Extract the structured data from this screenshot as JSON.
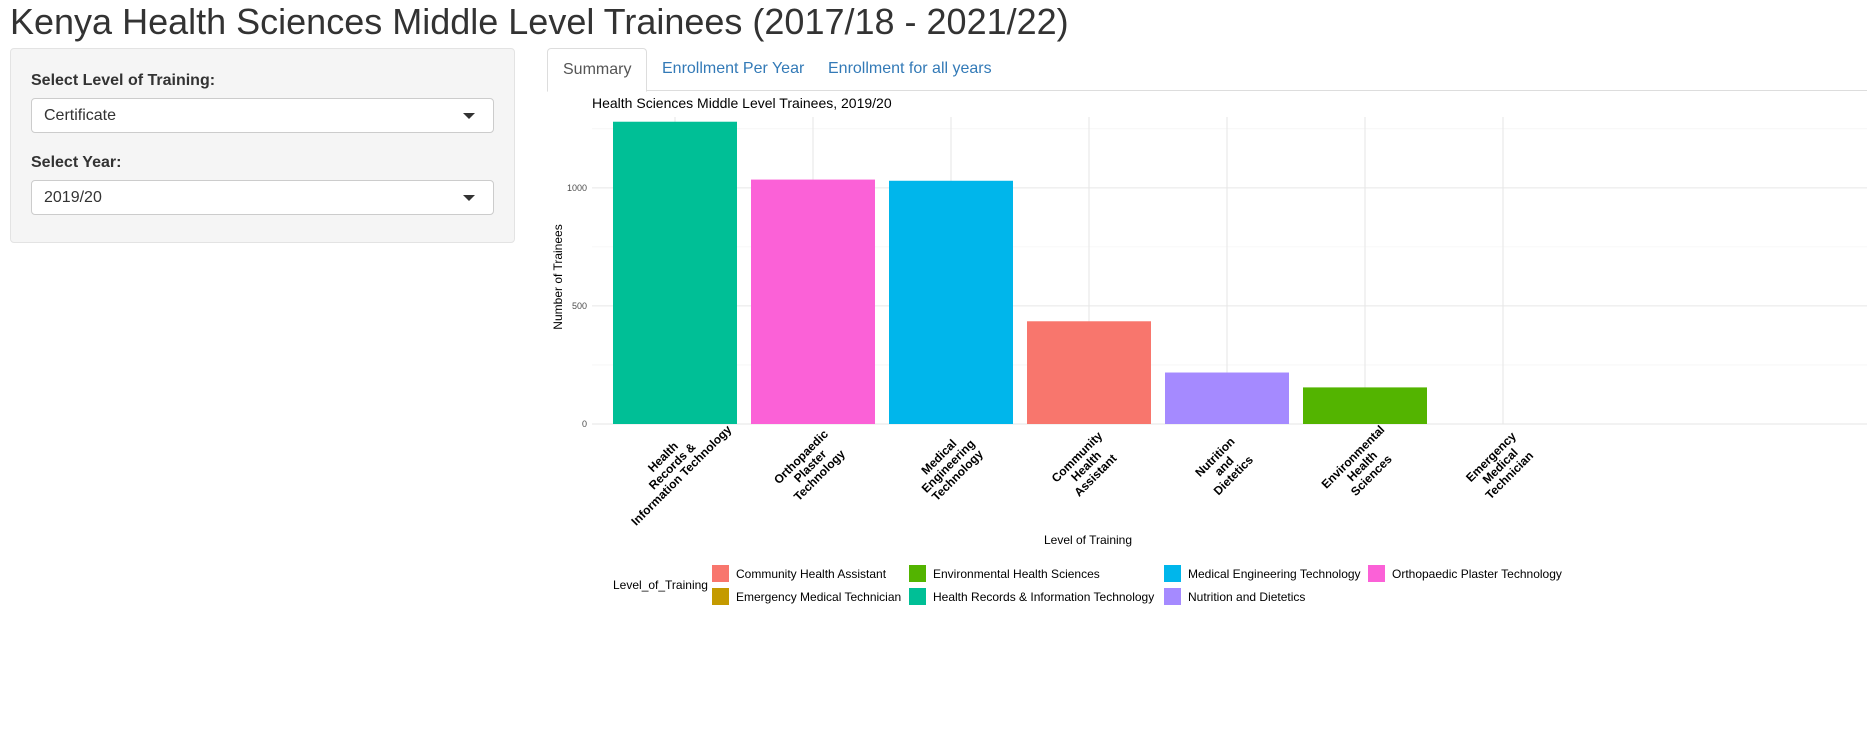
{
  "header": {
    "title": "Kenya Health Sciences Middle Level Trainees (2017/18 - 2021/22)"
  },
  "sidebar": {
    "level_label": "Select Level of Training:",
    "level_value": "Certificate",
    "year_label": "Select Year:",
    "year_value": "2019/20"
  },
  "tabs": [
    {
      "label": "Summary",
      "active": true
    },
    {
      "label": "Enrollment Per Year",
      "active": false
    },
    {
      "label": "Enrollment for all years",
      "active": false
    }
  ],
  "chart_data": {
    "type": "bar",
    "title": "Health Sciences Middle Level Trainees,  2019/20",
    "xlabel": "Level of Training",
    "ylabel": "Number of Trainees",
    "ylim": [
      0,
      1300
    ],
    "yticks": [
      0,
      500,
      1000
    ],
    "grid": true,
    "categories": [
      "Health Records & Information Technology",
      "Orthopaedic Plaster Technology",
      "Medical Engineering Technology",
      "Community Health Assistant",
      "Nutrition and Dietetics",
      "Environmental Health Sciences",
      "Emergency Medical Technician"
    ],
    "values": [
      1280,
      1035,
      1030,
      435,
      218,
      155,
      0
    ],
    "colors": [
      "#00BF96",
      "#FB61D7",
      "#00B6EB",
      "#F8766D",
      "#A58AFF",
      "#53B400",
      "#C49A00"
    ],
    "legend": {
      "title": "Level_of_Training",
      "position": "bottom",
      "items": [
        {
          "label": "Community Health Assistant",
          "color": "#F8766D"
        },
        {
          "label": "Environmental Health Sciences",
          "color": "#53B400"
        },
        {
          "label": "Medical Engineering Technology",
          "color": "#00B6EB"
        },
        {
          "label": "Orthopaedic Plaster Technology",
          "color": "#FB61D7"
        },
        {
          "label": "Emergency Medical Technician",
          "color": "#C49A00"
        },
        {
          "label": "Health Records & Information Technology",
          "color": "#00BF96"
        },
        {
          "label": "Nutrition and Dietetics",
          "color": "#A58AFF"
        }
      ]
    }
  }
}
